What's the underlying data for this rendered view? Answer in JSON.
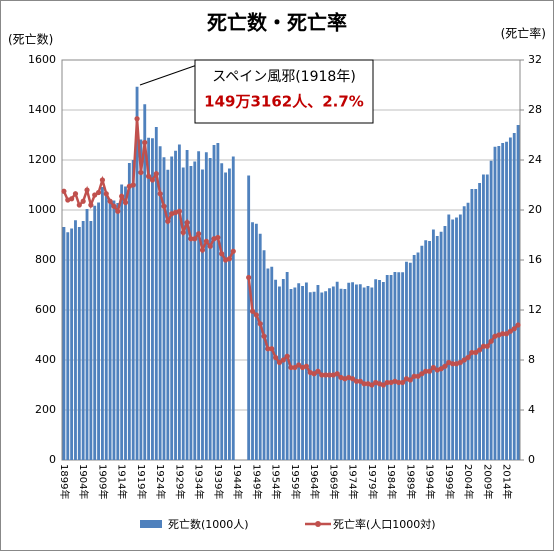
{
  "chart_data": {
    "type": "bar-line",
    "title": "死亡数・死亡率",
    "y_label": "(死亡数)",
    "y2_label": "(死亡率)",
    "annotations": [
      "スペイン風邪(1918年)",
      "149万3162人、2.7%"
    ],
    "categories": [
      "1899年",
      null,
      null,
      null,
      null,
      "1904年",
      null,
      null,
      null,
      null,
      "1909年",
      null,
      null,
      null,
      null,
      "1914年",
      null,
      null,
      null,
      null,
      "1919年",
      null,
      null,
      null,
      null,
      "1924年",
      null,
      null,
      null,
      null,
      "1929年",
      null,
      null,
      null,
      null,
      "1934年",
      null,
      null,
      null,
      null,
      "1939年",
      null,
      null,
      null,
      null,
      "1944年",
      null,
      null,
      null,
      null,
      "1949年",
      null,
      null,
      null,
      null,
      "1954年",
      null,
      null,
      null,
      null,
      "1959年",
      null,
      null,
      null,
      null,
      "1964年",
      null,
      null,
      null,
      null,
      "1969年",
      null,
      null,
      null,
      null,
      "1974年",
      null,
      null,
      null,
      null,
      "1979年",
      null,
      null,
      null,
      null,
      "1984年",
      null,
      null,
      null,
      null,
      "1989年",
      null,
      null,
      null,
      null,
      "1994年",
      null,
      null,
      null,
      null,
      "1999年",
      null,
      null,
      null,
      null,
      "2004年",
      null,
      null,
      null,
      null,
      "2009年",
      null,
      null,
      null,
      null,
      "2014年",
      null,
      null,
      null
    ],
    "series": [
      {
        "name": "死亡数(1000人)",
        "type": "bar",
        "color": "#4f81bd",
        "values": [
          932,
          911,
          926,
          959,
          932,
          956,
          1004,
          956,
          1017,
          1030,
          1092,
          1065,
          1044,
          1038,
          1028,
          1102,
          1094,
          1188,
          1200,
          1493,
          1282,
          1423,
          1289,
          1287,
          1332,
          1255,
          1211,
          1161,
          1214,
          1237,
          1262,
          1170,
          1240,
          1176,
          1194,
          1235,
          1162,
          1231,
          1208,
          1260,
          1268,
          1187,
          1150,
          1166,
          1214,
          null,
          null,
          null,
          1138,
          951,
          945,
          905,
          839,
          766,
          773,
          721,
          694,
          724,
          752,
          684,
          690,
          707,
          696,
          710,
          671,
          673,
          700,
          670,
          675,
          687,
          694,
          713,
          685,
          684,
          709,
          711,
          702,
          703,
          690,
          696,
          690,
          723,
          720,
          712,
          740,
          740,
          752,
          751,
          751,
          793,
          789,
          820,
          830,
          857,
          879,
          876,
          922,
          896,
          913,
          936,
          982,
          962,
          970,
          982,
          1015,
          1029,
          1084,
          1084,
          1108,
          1142,
          1142,
          1197,
          1253,
          1256,
          1268,
          1273,
          1290,
          1308,
          1340
        ]
      },
      {
        "name": "死亡率(人口1000対)",
        "type": "line",
        "axis": "y2",
        "color": "#c0504d",
        "values": [
          21.5,
          20.8,
          20.9,
          21.3,
          20.4,
          20.7,
          21.6,
          20.4,
          21.2,
          21.4,
          22.4,
          21.3,
          20.7,
          20.3,
          19.9,
          21.1,
          20.6,
          21.9,
          22.0,
          27.3,
          23.0,
          25.4,
          22.7,
          22.4,
          22.9,
          21.3,
          20.3,
          19.1,
          19.7,
          19.8,
          19.9,
          18.2,
          19.0,
          17.7,
          17.7,
          18.1,
          16.8,
          17.5,
          17.1,
          17.7,
          17.8,
          16.5,
          16.0,
          16.1,
          16.7,
          null,
          null,
          null,
          14.6,
          11.9,
          11.6,
          10.9,
          9.9,
          8.9,
          8.9,
          8.2,
          7.8,
          8.0,
          8.3,
          7.4,
          7.4,
          7.6,
          7.4,
          7.5,
          7.0,
          6.9,
          7.1,
          6.8,
          6.8,
          6.8,
          6.8,
          6.9,
          6.6,
          6.5,
          6.6,
          6.5,
          6.3,
          6.3,
          6.1,
          6.1,
          6.0,
          6.2,
          6.1,
          6.0,
          6.2,
          6.2,
          6.3,
          6.2,
          6.2,
          6.5,
          6.4,
          6.7,
          6.7,
          6.9,
          7.1,
          7.1,
          7.4,
          7.2,
          7.3,
          7.5,
          7.8,
          7.7,
          7.7,
          7.8,
          8.0,
          8.2,
          8.6,
          8.6,
          8.8,
          9.1,
          9.1,
          9.5,
          9.9,
          10.0,
          10.1,
          10.1,
          10.3,
          10.5,
          10.8
        ]
      }
    ],
    "ylim": [
      0,
      1600
    ],
    "yticks": [
      0,
      200,
      400,
      600,
      800,
      1000,
      1200,
      1400,
      1600
    ],
    "y2lim": [
      0,
      32
    ],
    "y2ticks": [
      0,
      4,
      8,
      12,
      16,
      20,
      24,
      28,
      32
    ],
    "grid": true
  }
}
